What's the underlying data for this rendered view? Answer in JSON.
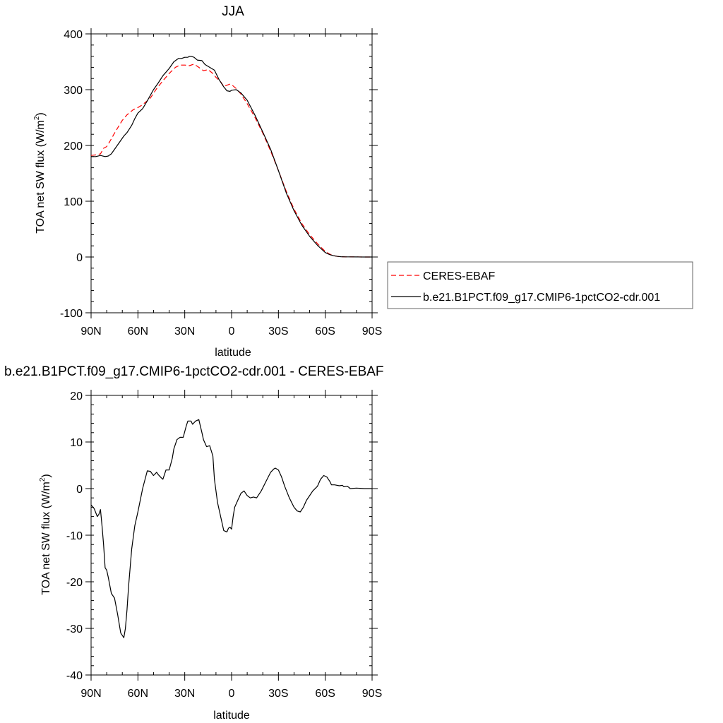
{
  "chart_data": [
    {
      "type": "line",
      "title": "JJA",
      "xlabel": "latitude",
      "ylabel": "TOA net SW flux (W/m",
      "ylabel_sup": "2",
      "ylabel_end": ")",
      "xlim": [
        90,
        -90
      ],
      "ylim": [
        -100,
        400
      ],
      "x_ticks": [
        {
          "value": 90,
          "label": "90N"
        },
        {
          "value": 60,
          "label": "60N"
        },
        {
          "value": 30,
          "label": "30N"
        },
        {
          "value": 0,
          "label": "0"
        },
        {
          "value": -30,
          "label": "30S"
        },
        {
          "value": -60,
          "label": "60S"
        },
        {
          "value": -90,
          "label": "90S"
        }
      ],
      "y_ticks": [
        {
          "value": 400,
          "label": "400"
        },
        {
          "value": 300,
          "label": "300"
        },
        {
          "value": 200,
          "label": "200"
        },
        {
          "value": 100,
          "label": "100"
        },
        {
          "value": 0,
          "label": "0"
        },
        {
          "value": -100,
          "label": "-100"
        }
      ],
      "legend": "right",
      "series": [
        {
          "name": "CERES-EBAF",
          "color": "#ff0000",
          "dash": "dashed",
          "x": [
            90,
            87,
            84,
            82,
            80,
            78,
            75,
            72,
            70,
            67,
            63,
            60,
            57,
            52,
            48,
            44,
            40,
            36,
            33,
            30,
            27,
            24,
            21,
            18,
            15,
            12,
            10,
            7,
            5,
            3,
            1,
            0,
            -3,
            -6,
            -10,
            -15,
            -20,
            -25,
            -30,
            -35,
            -40,
            -45,
            -50,
            -55,
            -60,
            -63,
            -66,
            -68,
            -70,
            -73,
            -76,
            -80,
            -85,
            -90
          ],
          "y": [
            182,
            183,
            185,
            195,
            198,
            207,
            222,
            236,
            245,
            255,
            264,
            268,
            273,
            285,
            302,
            316,
            329,
            340,
            344,
            344,
            343,
            346,
            340,
            334,
            336,
            329,
            322,
            314,
            306,
            308,
            310,
            309,
            302,
            292,
            275,
            250,
            222,
            190,
            155,
            118,
            86,
            60,
            40,
            24,
            10,
            5,
            2,
            1,
            0.5,
            0.3,
            0.2,
            0.1,
            0,
            0
          ]
        },
        {
          "name": "b.e21.B1PCT.f09_g17.CMIP6-1pctCO2-cdr.001",
          "color": "#000000",
          "dash": "solid",
          "x": [
            90,
            87,
            84,
            81,
            79,
            77,
            75,
            72,
            69,
            67,
            64,
            62,
            60,
            57,
            54,
            50,
            47,
            44,
            40,
            37,
            34,
            32,
            30,
            28,
            27,
            26,
            24,
            22,
            19,
            17,
            14,
            11,
            8,
            5,
            3,
            1,
            0,
            -3,
            -6,
            -10,
            -15,
            -20,
            -25,
            -30,
            -35,
            -40,
            -45,
            -50,
            -55,
            -60,
            -63,
            -66,
            -68,
            -70,
            -73,
            -76,
            -80,
            -85,
            -90
          ],
          "y": [
            180,
            180,
            182,
            180,
            181,
            185,
            193,
            205,
            217,
            223,
            236,
            248,
            258,
            266,
            280,
            300,
            312,
            325,
            338,
            350,
            356,
            356,
            358,
            358,
            360,
            360,
            358,
            353,
            352,
            345,
            340,
            335,
            318,
            305,
            298,
            297,
            299,
            300,
            294,
            281,
            254,
            224,
            193,
            155,
            115,
            83,
            57,
            37,
            21,
            8,
            4,
            2,
            1,
            0.5,
            0.3,
            0.2,
            0.1,
            0,
            0
          ]
        }
      ]
    },
    {
      "type": "line",
      "title": "b.e21.B1PCT.f09_g17.CMIP6-1pctCO2-cdr.001 - CERES-EBAF",
      "xlabel": "latitude",
      "ylabel": "TOA net SW flux (W/m",
      "ylabel_sup": "2",
      "ylabel_end": ")",
      "xlim": [
        90,
        -90
      ],
      "ylim": [
        -40,
        20
      ],
      "x_ticks": [
        {
          "value": 90,
          "label": "90N"
        },
        {
          "value": 60,
          "label": "60N"
        },
        {
          "value": 30,
          "label": "30N"
        },
        {
          "value": 0,
          "label": "0"
        },
        {
          "value": -30,
          "label": "30S"
        },
        {
          "value": -60,
          "label": "60S"
        },
        {
          "value": -90,
          "label": "90S"
        }
      ],
      "y_ticks": [
        {
          "value": 20,
          "label": "20"
        },
        {
          "value": 10,
          "label": "10"
        },
        {
          "value": 0,
          "label": "0"
        },
        {
          "value": -10,
          "label": "-10"
        },
        {
          "value": -20,
          "label": "-20"
        },
        {
          "value": -30,
          "label": "-30"
        },
        {
          "value": -40,
          "label": "-40"
        }
      ],
      "legend": "none",
      "series": [
        {
          "color": "#000000",
          "dash": "solid",
          "x": [
            90,
            88,
            86,
            85,
            84,
            83,
            82,
            81,
            80,
            79,
            77,
            75,
            73,
            71,
            69,
            68,
            67,
            66,
            65,
            64,
            62,
            60,
            57,
            54,
            52,
            50,
            48,
            47,
            45,
            44,
            42,
            40,
            38,
            37,
            35,
            33,
            31,
            29,
            28,
            26,
            25,
            23,
            21,
            19,
            18,
            16,
            14,
            12,
            11,
            9,
            7,
            5,
            3,
            2,
            1,
            0,
            -1,
            -2,
            -4,
            -6,
            -8,
            -10,
            -12,
            -14,
            -16,
            -19,
            -22,
            -25,
            -27,
            -28,
            -30,
            -32,
            -34,
            -37,
            -40,
            -42,
            -44,
            -46,
            -48,
            -50,
            -52,
            -55,
            -57,
            -59,
            -61,
            -62,
            -63,
            -64,
            -66,
            -69,
            -71,
            -72,
            -74,
            -75,
            -76,
            -80,
            -85,
            -90
          ],
          "y": [
            -3.5,
            -4.3,
            -6,
            -5.5,
            -4.5,
            -8,
            -12,
            -17,
            -17.5,
            -19,
            -22.5,
            -23.5,
            -27,
            -31,
            -32,
            -30,
            -26,
            -21,
            -17,
            -13,
            -8,
            -5,
            0,
            3.8,
            3.7,
            2.8,
            3.5,
            3,
            2.3,
            2,
            4,
            4,
            6.5,
            8.5,
            10.5,
            11,
            11,
            13.5,
            14.5,
            14.5,
            13.8,
            14.5,
            14.8,
            12,
            10.5,
            9,
            9.2,
            7,
            2,
            -3,
            -6,
            -9,
            -9.3,
            -8.5,
            -8.3,
            -8.7,
            -6,
            -4,
            -2.5,
            -1,
            -0.5,
            -1.5,
            -2,
            -1.8,
            -2,
            -0.5,
            1.5,
            3.5,
            4.2,
            4.4,
            4,
            2.5,
            0.5,
            -2,
            -4,
            -4.8,
            -5,
            -4,
            -2.5,
            -1.5,
            -0.5,
            0.5,
            2,
            2.8,
            2.5,
            2,
            1.5,
            0.8,
            0.8,
            0.6,
            0.7,
            0.4,
            0.5,
            0.3,
            0,
            0.1,
            0,
            0
          ]
        }
      ]
    }
  ]
}
